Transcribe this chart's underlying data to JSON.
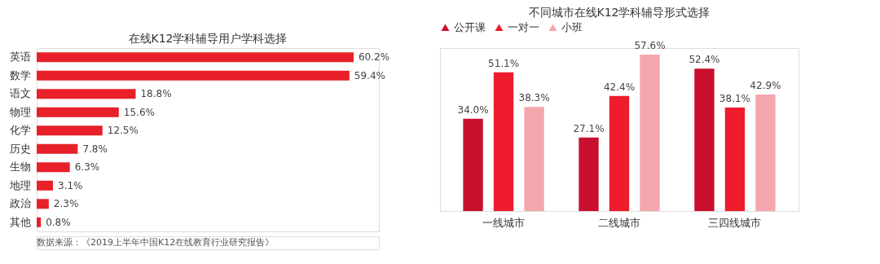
{
  "chart_data": [
    {
      "type": "bar",
      "orientation": "horizontal",
      "title": "在线K12学科辅导用户学科选择",
      "categories": [
        "英语",
        "数学",
        "语文",
        "物理",
        "化学",
        "历史",
        "生物",
        "地理",
        "政治",
        "其他"
      ],
      "values": [
        60.2,
        59.4,
        18.8,
        15.6,
        12.5,
        7.8,
        6.3,
        3.1,
        2.3,
        0.8
      ],
      "value_labels": [
        "60.2%",
        "59.4%",
        "18.8%",
        "15.6%",
        "12.5%",
        "7.8%",
        "6.3%",
        "3.1%",
        "2.3%",
        "0.8%"
      ],
      "color": "#e8202a",
      "annotations": [
        "数据来源：《2019上半年中国K12在线教育行业研究报告》"
      ]
    },
    {
      "type": "bar",
      "title": "不同城市在线K12学科辅导形式选择",
      "categories": [
        "一线城市",
        "二线城市",
        "三四线城市"
      ],
      "legend": "top",
      "series": [
        {
          "name": "公开课",
          "color": "#c8102e",
          "values": [
            34.0,
            27.1,
            52.4
          ],
          "value_labels": [
            "34.0%",
            "27.1%",
            "52.4%"
          ]
        },
        {
          "name": "一对一",
          "color": "#ee1c2c",
          "values": [
            51.1,
            42.4,
            38.1
          ],
          "value_labels": [
            "51.1%",
            "42.4%",
            "38.1%"
          ]
        },
        {
          "name": "小班",
          "color": "#f4a6ad",
          "values": [
            38.3,
            57.6,
            42.9
          ],
          "value_labels": [
            "38.3%",
            "57.6%",
            "42.9%"
          ]
        }
      ]
    }
  ]
}
